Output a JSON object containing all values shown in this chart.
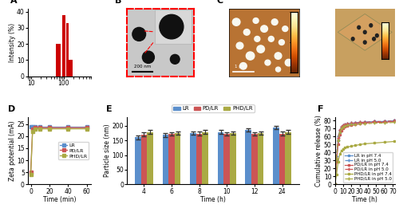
{
  "A": {
    "ylabel": "Intensity (%)",
    "bar_positions": [
      70,
      100,
      130,
      160,
      200,
      250,
      300,
      400,
      500,
      600
    ],
    "bar_heights": [
      20,
      38,
      33,
      10,
      0,
      0,
      0,
      0,
      0,
      0
    ],
    "bar_color": "#cc0000",
    "xticks": [
      10,
      100
    ],
    "xlim": [
      8,
      700
    ],
    "ylim": [
      0,
      42
    ],
    "yticks": [
      0,
      10,
      20,
      30,
      40
    ]
  },
  "D": {
    "ylabel": "Zeta potential (mA)",
    "xlabel": "Time (min)",
    "ylim": [
      0,
      28
    ],
    "yticks": [
      0,
      5,
      10,
      15,
      20,
      25
    ],
    "xticks": [
      0,
      20,
      40,
      60
    ],
    "xlim": [
      -3,
      65
    ],
    "time": [
      0,
      2,
      5,
      10,
      20,
      40,
      60
    ],
    "LR_vals": [
      24,
      24,
      24,
      24,
      24,
      24,
      24
    ],
    "PD_vals": [
      5,
      23,
      23.5,
      23.5,
      23.5,
      23.5,
      23.5
    ],
    "PHD_vals": [
      4,
      22,
      23,
      23,
      23,
      23,
      23
    ],
    "LR_color": "#5b8fcc",
    "PD_color": "#cc5555",
    "PHD_color": "#aaaa44",
    "marker": "s",
    "markersize": 3
  },
  "E": {
    "ylabel": "Particle size (nm)",
    "xlabel": "Time (h)",
    "ylim": [
      0,
      230
    ],
    "yticks": [
      0,
      50,
      100,
      150,
      200
    ],
    "time_points": [
      4,
      6,
      8,
      10,
      12,
      24
    ],
    "LR_vals": [
      160,
      168,
      175,
      178,
      185,
      193
    ],
    "PD_vals": [
      170,
      172,
      173,
      172,
      172,
      173
    ],
    "PHD_vals": [
      178,
      175,
      178,
      175,
      175,
      178
    ],
    "LR_color": "#5b8fcc",
    "PD_color": "#cc5555",
    "PHD_color": "#aaaa44",
    "error": 6
  },
  "F": {
    "ylabel": "Cumulative release (%)",
    "xlabel": "Time (h)",
    "ylim": [
      0,
      85
    ],
    "yticks": [
      0,
      10,
      20,
      30,
      40,
      50,
      60,
      70,
      80
    ],
    "xlim": [
      0,
      73
    ],
    "xticks": [
      0,
      10,
      20,
      30,
      40,
      50,
      60,
      70
    ],
    "time": [
      0,
      2,
      4,
      6,
      8,
      10,
      12,
      15,
      20,
      25,
      30,
      36,
      48,
      60,
      72
    ],
    "LR_74": [
      0,
      30,
      55,
      65,
      70,
      72,
      74,
      75,
      76,
      77,
      77,
      78,
      79,
      79,
      80
    ],
    "LR_50": [
      0,
      35,
      60,
      68,
      72,
      74,
      75,
      76,
      77,
      77,
      78,
      78,
      79,
      79,
      80
    ],
    "PD_74": [
      0,
      28,
      50,
      62,
      67,
      70,
      72,
      73,
      74,
      75,
      76,
      77,
      78,
      78,
      79
    ],
    "PD_50": [
      0,
      32,
      58,
      68,
      72,
      74,
      75,
      76,
      77,
      77,
      78,
      78,
      79,
      79,
      80
    ],
    "PHD_74": [
      0,
      12,
      28,
      38,
      42,
      44,
      46,
      47,
      48,
      49,
      50,
      51,
      52,
      53,
      54
    ],
    "PHD_50": [
      0,
      32,
      55,
      65,
      70,
      72,
      73,
      74,
      75,
      75,
      76,
      76,
      77,
      77,
      78
    ],
    "LR_color": "#5b8fcc",
    "PD_color": "#cc5555",
    "PHD_color": "#aaaa44"
  }
}
